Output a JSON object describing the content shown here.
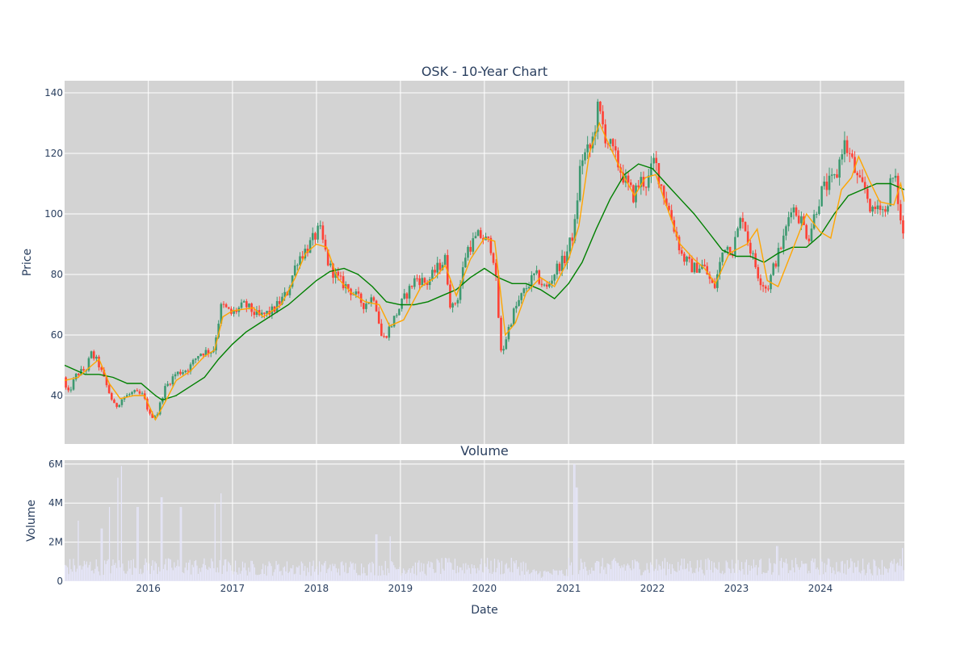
{
  "chart_data": [
    {
      "type": "candlestick",
      "title": "OSK - 10-Year Chart",
      "ylabel": "Price",
      "xlim": [
        "2015-01-02",
        "2024-12-31"
      ],
      "ylim": [
        24,
        144
      ],
      "y_ticks": [
        40,
        60,
        80,
        100,
        120,
        140
      ],
      "grid": true,
      "plot_background": "#d3d3d3",
      "colors": {
        "increasing": "#3d9970",
        "decreasing": "#ff4136",
        "ma_short": "#ffa500",
        "ma_long": "#008000"
      },
      "series": [
        {
          "kind": "moving-average-short",
          "points": [
            [
              "2015-01-02",
              45
            ],
            [
              "2015-03-01",
              46
            ],
            [
              "2015-05-01",
              50
            ],
            [
              "2015-06-01",
              52
            ],
            [
              "2015-07-15",
              44
            ],
            [
              "2015-09-01",
              39
            ],
            [
              "2015-11-01",
              40
            ],
            [
              "2015-12-15",
              40
            ],
            [
              "2016-02-01",
              32
            ],
            [
              "2016-03-15",
              38
            ],
            [
              "2016-05-01",
              45
            ],
            [
              "2016-07-01",
              48
            ],
            [
              "2016-09-01",
              53
            ],
            [
              "2016-10-15",
              55
            ],
            [
              "2016-11-20",
              66
            ],
            [
              "2017-01-01",
              68
            ],
            [
              "2017-04-01",
              69
            ],
            [
              "2017-05-15",
              66
            ],
            [
              "2017-08-01",
              70
            ],
            [
              "2017-10-01",
              79
            ],
            [
              "2017-11-15",
              87
            ],
            [
              "2018-01-01",
              90
            ],
            [
              "2018-02-15",
              89
            ],
            [
              "2018-04-01",
              79
            ],
            [
              "2018-06-01",
              74
            ],
            [
              "2018-08-01",
              71
            ],
            [
              "2018-10-01",
              70
            ],
            [
              "2018-11-15",
              63
            ],
            [
              "2019-01-15",
              65
            ],
            [
              "2019-04-01",
              76
            ],
            [
              "2019-06-01",
              79
            ],
            [
              "2019-07-15",
              83
            ],
            [
              "2019-09-01",
              73
            ],
            [
              "2019-11-01",
              85
            ],
            [
              "2020-01-01",
              92
            ],
            [
              "2020-02-15",
              91
            ],
            [
              "2020-04-01",
              60
            ],
            [
              "2020-05-15",
              64
            ],
            [
              "2020-07-01",
              74
            ],
            [
              "2020-09-01",
              79
            ],
            [
              "2020-11-01",
              76
            ],
            [
              "2021-01-01",
              85
            ],
            [
              "2021-02-15",
              96
            ],
            [
              "2021-04-01",
              120
            ],
            [
              "2021-05-15",
              130
            ],
            [
              "2021-07-01",
              122
            ],
            [
              "2021-09-01",
              112
            ],
            [
              "2021-10-15",
              106
            ],
            [
              "2021-12-01",
              112
            ],
            [
              "2022-01-15",
              113
            ],
            [
              "2022-03-01",
              103
            ],
            [
              "2022-05-01",
              90
            ],
            [
              "2022-07-01",
              85
            ],
            [
              "2022-08-15",
              82
            ],
            [
              "2022-10-01",
              77
            ],
            [
              "2022-12-01",
              87
            ],
            [
              "2023-02-15",
              90
            ],
            [
              "2023-04-01",
              95
            ],
            [
              "2023-05-15",
              78
            ],
            [
              "2023-07-01",
              76
            ],
            [
              "2023-09-01",
              88
            ],
            [
              "2023-11-01",
              100
            ],
            [
              "2024-01-01",
              94
            ],
            [
              "2024-02-15",
              92
            ],
            [
              "2024-04-01",
              108
            ],
            [
              "2024-05-15",
              112
            ],
            [
              "2024-06-15",
              119
            ],
            [
              "2024-08-01",
              111
            ],
            [
              "2024-09-15",
              104
            ],
            [
              "2024-11-15",
              103
            ],
            [
              "2024-12-15",
              110
            ],
            [
              "2024-12-31",
              104
            ]
          ]
        },
        {
          "kind": "moving-average-long",
          "points": [
            [
              "2015-01-02",
              50
            ],
            [
              "2015-04-01",
              47
            ],
            [
              "2015-06-01",
              47
            ],
            [
              "2015-08-01",
              46
            ],
            [
              "2015-10-01",
              44
            ],
            [
              "2015-12-01",
              44
            ],
            [
              "2016-02-01",
              40
            ],
            [
              "2016-03-01",
              38.5
            ],
            [
              "2016-05-01",
              40
            ],
            [
              "2016-07-01",
              43
            ],
            [
              "2016-09-01",
              46
            ],
            [
              "2016-11-01",
              52
            ],
            [
              "2017-01-01",
              57
            ],
            [
              "2017-03-01",
              61
            ],
            [
              "2017-05-01",
              64
            ],
            [
              "2017-07-01",
              67
            ],
            [
              "2017-09-01",
              70
            ],
            [
              "2017-11-01",
              74
            ],
            [
              "2018-01-01",
              78
            ],
            [
              "2018-03-01",
              81
            ],
            [
              "2018-05-01",
              82
            ],
            [
              "2018-07-01",
              80
            ],
            [
              "2018-09-01",
              76
            ],
            [
              "2018-11-01",
              71
            ],
            [
              "2019-01-01",
              70
            ],
            [
              "2019-03-01",
              70
            ],
            [
              "2019-05-01",
              71
            ],
            [
              "2019-07-01",
              73
            ],
            [
              "2019-09-01",
              75
            ],
            [
              "2019-11-01",
              79
            ],
            [
              "2020-01-01",
              82
            ],
            [
              "2020-03-01",
              79
            ],
            [
              "2020-05-01",
              77
            ],
            [
              "2020-07-01",
              77
            ],
            [
              "2020-09-01",
              75
            ],
            [
              "2020-11-01",
              72
            ],
            [
              "2021-01-01",
              77
            ],
            [
              "2021-03-01",
              84
            ],
            [
              "2021-05-01",
              95
            ],
            [
              "2021-07-01",
              105
            ],
            [
              "2021-09-01",
              113
            ],
            [
              "2021-11-01",
              116.5
            ],
            [
              "2022-01-01",
              115
            ],
            [
              "2022-03-01",
              110
            ],
            [
              "2022-05-01",
              105
            ],
            [
              "2022-07-01",
              100
            ],
            [
              "2022-09-01",
              94
            ],
            [
              "2022-11-01",
              88
            ],
            [
              "2023-01-01",
              86
            ],
            [
              "2023-03-01",
              86
            ],
            [
              "2023-05-01",
              84
            ],
            [
              "2023-07-01",
              87
            ],
            [
              "2023-09-01",
              89
            ],
            [
              "2023-11-01",
              89
            ],
            [
              "2024-01-01",
              93
            ],
            [
              "2024-03-01",
              100
            ],
            [
              "2024-05-01",
              106
            ],
            [
              "2024-07-01",
              108
            ],
            [
              "2024-09-01",
              110
            ],
            [
              "2024-11-01",
              110
            ],
            [
              "2024-12-31",
              108
            ]
          ]
        },
        {
          "kind": "ohlc-path",
          "points": [
            [
              "2015-01-02",
              46
            ],
            [
              "2015-01-20",
              40
            ],
            [
              "2015-03-01",
              47
            ],
            [
              "2015-04-15",
              49
            ],
            [
              "2015-05-01",
              54
            ],
            [
              "2015-06-01",
              51
            ],
            [
              "2015-07-15",
              42
            ],
            [
              "2015-08-15",
              36
            ],
            [
              "2015-09-15",
              39
            ],
            [
              "2015-11-01",
              41
            ],
            [
              "2015-12-15",
              40
            ],
            [
              "2016-01-15",
              33
            ],
            [
              "2016-02-15",
              34
            ],
            [
              "2016-03-15",
              42
            ],
            [
              "2016-05-01",
              47
            ],
            [
              "2016-07-01",
              49
            ],
            [
              "2016-08-15",
              54
            ],
            [
              "2016-10-15",
              55
            ],
            [
              "2016-11-20",
              70
            ],
            [
              "2017-01-01",
              67
            ],
            [
              "2017-03-01",
              70
            ],
            [
              "2017-05-01",
              66
            ],
            [
              "2017-07-01",
              68
            ],
            [
              "2017-09-01",
              74
            ],
            [
              "2017-10-15",
              85
            ],
            [
              "2017-12-01",
              89
            ],
            [
              "2018-01-20",
              95
            ],
            [
              "2018-03-01",
              83
            ],
            [
              "2018-04-15",
              78
            ],
            [
              "2018-06-01",
              75
            ],
            [
              "2018-08-01",
              70
            ],
            [
              "2018-09-15",
              73
            ],
            [
              "2018-10-20",
              58
            ],
            [
              "2018-12-01",
              64
            ],
            [
              "2019-01-15",
              71
            ],
            [
              "2019-03-15",
              79
            ],
            [
              "2019-05-01",
              77
            ],
            [
              "2019-06-15",
              82
            ],
            [
              "2019-07-20",
              85
            ],
            [
              "2019-08-15",
              68
            ],
            [
              "2019-09-15",
              73
            ],
            [
              "2019-10-20",
              88
            ],
            [
              "2019-12-15",
              93
            ],
            [
              "2020-02-01",
              90
            ],
            [
              "2020-02-20",
              84
            ],
            [
              "2020-03-20",
              53
            ],
            [
              "2020-04-20",
              62
            ],
            [
              "2020-05-15",
              68
            ],
            [
              "2020-07-01",
              75
            ],
            [
              "2020-08-15",
              80
            ],
            [
              "2020-10-01",
              75
            ],
            [
              "2020-11-15",
              82
            ],
            [
              "2020-12-20",
              85
            ],
            [
              "2021-02-01",
              95
            ],
            [
              "2021-03-01",
              118
            ],
            [
              "2021-04-15",
              122
            ],
            [
              "2021-05-15",
              135
            ],
            [
              "2021-06-15",
              126
            ],
            [
              "2021-08-01",
              118
            ],
            [
              "2021-09-15",
              110
            ],
            [
              "2021-10-15",
              106
            ],
            [
              "2021-11-15",
              111
            ],
            [
              "2021-12-15",
              110
            ],
            [
              "2022-01-15",
              118
            ],
            [
              "2022-02-15",
              109
            ],
            [
              "2022-04-01",
              98
            ],
            [
              "2022-05-15",
              86
            ],
            [
              "2022-07-01",
              82
            ],
            [
              "2022-08-15",
              83
            ],
            [
              "2022-10-01",
              75
            ],
            [
              "2022-11-15",
              90
            ],
            [
              "2022-12-20",
              88
            ],
            [
              "2023-02-01",
              100
            ],
            [
              "2023-03-01",
              90
            ],
            [
              "2023-04-15",
              79
            ],
            [
              "2023-05-20",
              75
            ],
            [
              "2023-06-15",
              82
            ],
            [
              "2023-08-01",
              92
            ],
            [
              "2023-09-01",
              103
            ],
            [
              "2023-10-15",
              98
            ],
            [
              "2023-11-15",
              92
            ],
            [
              "2023-12-20",
              102
            ],
            [
              "2024-01-15",
              108
            ],
            [
              "2024-03-15",
              112
            ],
            [
              "2024-04-15",
              124
            ],
            [
              "2024-05-20",
              118
            ],
            [
              "2024-06-20",
              110
            ],
            [
              "2024-07-20",
              108
            ],
            [
              "2024-08-20",
              100
            ],
            [
              "2024-09-20",
              104
            ],
            [
              "2024-10-15",
              100
            ],
            [
              "2024-11-10",
              112
            ],
            [
              "2024-12-01",
              110
            ],
            [
              "2024-12-20",
              97
            ],
            [
              "2024-12-31",
              94
            ]
          ]
        }
      ]
    },
    {
      "type": "bar",
      "title": "Volume",
      "xlabel": "Date",
      "ylabel": "Volume",
      "ylim": [
        0,
        6200000
      ],
      "y_ticks": [
        0,
        2000000,
        4000000,
        6000000
      ],
      "y_tick_labels": [
        "0",
        "2M",
        "4M",
        "6M"
      ],
      "grid": true,
      "bar_color": "#e6e6fa",
      "peaks": [
        [
          "2015-03-01",
          3100000
        ],
        [
          "2015-06-10",
          2700000
        ],
        [
          "2015-07-15",
          3800000
        ],
        [
          "2015-08-20",
          5300000
        ],
        [
          "2015-09-05",
          5900000
        ],
        [
          "2015-11-15",
          3800000
        ],
        [
          "2016-02-25",
          4300000
        ],
        [
          "2016-05-20",
          3800000
        ],
        [
          "2016-10-15",
          4000000
        ],
        [
          "2016-11-10",
          4500000
        ],
        [
          "2018-09-15",
          2400000
        ],
        [
          "2018-11-15",
          2300000
        ],
        [
          "2021-01-25",
          6000000
        ],
        [
          "2021-02-05",
          4800000
        ],
        [
          "2023-06-25",
          1800000
        ],
        [
          "2024-12-20",
          1700000
        ]
      ]
    }
  ],
  "x_axis": {
    "ticks": [
      "2016-01-01",
      "2017-01-01",
      "2018-01-01",
      "2019-01-01",
      "2020-01-01",
      "2021-01-01",
      "2022-01-01",
      "2023-01-01",
      "2024-01-01"
    ],
    "tick_labels": [
      "2016",
      "2017",
      "2018",
      "2019",
      "2020",
      "2021",
      "2022",
      "2023",
      "2024"
    ]
  }
}
